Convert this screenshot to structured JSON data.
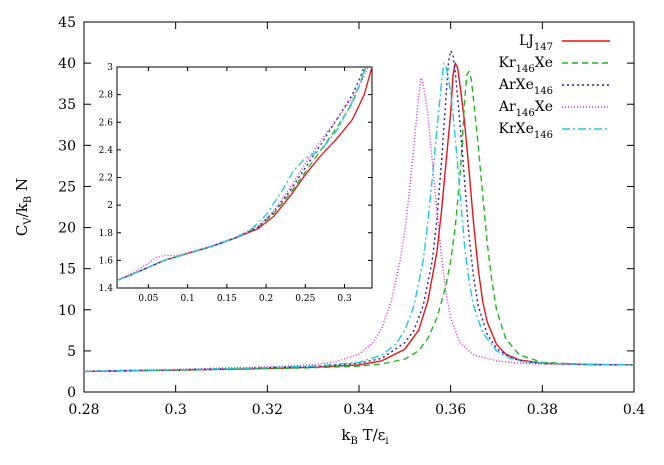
{
  "chart_data": [
    {
      "type": "line",
      "title": "",
      "xlabel": {
        "main": "k",
        "sub": "B",
        "rest": " T/ε",
        "sub2": "i"
      },
      "ylabel": {
        "main": "C",
        "sub": "V",
        "rest": "/k",
        "sub2": "B",
        "rest2": " N"
      },
      "xlim": [
        0.28,
        0.4
      ],
      "ylim": [
        0,
        45
      ],
      "xticks": [
        "0.28",
        "0.3",
        "0.32",
        "0.34",
        "0.36",
        "0.38",
        "0.4"
      ],
      "yticks": [
        "0",
        "5",
        "10",
        "15",
        "20",
        "25",
        "30",
        "35",
        "40",
        "45"
      ],
      "legend_position": "top-right",
      "grid": false,
      "series": [
        {
          "label_main": "LJ",
          "label_sub": "147",
          "label_rest": "",
          "color": "#e8141a",
          "dash": "",
          "points": [
            [
              0.28,
              2.5
            ],
            [
              0.3,
              2.65
            ],
            [
              0.32,
              2.85
            ],
            [
              0.33,
              3.0
            ],
            [
              0.34,
              3.3
            ],
            [
              0.345,
              3.8
            ],
            [
              0.35,
              5.2
            ],
            [
              0.353,
              7.5
            ],
            [
              0.355,
              11.0
            ],
            [
              0.357,
              17.0
            ],
            [
              0.358,
              22.0
            ],
            [
              0.359,
              28.0
            ],
            [
              0.36,
              34.0
            ],
            [
              0.3605,
              38.5
            ],
            [
              0.361,
              40.0
            ],
            [
              0.3615,
              39.5
            ],
            [
              0.362,
              37.5
            ],
            [
              0.363,
              33.0
            ],
            [
              0.364,
              27.0
            ],
            [
              0.365,
              20.5
            ],
            [
              0.366,
              15.0
            ],
            [
              0.367,
              11.0
            ],
            [
              0.368,
              8.5
            ],
            [
              0.37,
              5.8
            ],
            [
              0.372,
              4.6
            ],
            [
              0.375,
              3.9
            ],
            [
              0.38,
              3.5
            ],
            [
              0.39,
              3.35
            ],
            [
              0.4,
              3.3
            ]
          ]
        },
        {
          "label_main": "Kr",
          "label_sub": "146",
          "label_rest": "Xe",
          "color": "#22b522",
          "dash": "6,4",
          "points": [
            [
              0.28,
              2.5
            ],
            [
              0.3,
              2.65
            ],
            [
              0.32,
              2.85
            ],
            [
              0.33,
              2.95
            ],
            [
              0.34,
              3.15
            ],
            [
              0.345,
              3.4
            ],
            [
              0.35,
              4.0
            ],
            [
              0.353,
              5.0
            ],
            [
              0.355,
              6.5
            ],
            [
              0.357,
              9.0
            ],
            [
              0.359,
              13.0
            ],
            [
              0.36,
              16.0
            ],
            [
              0.361,
              20.0
            ],
            [
              0.362,
              26.0
            ],
            [
              0.3625,
              30.0
            ],
            [
              0.363,
              35.0
            ],
            [
              0.3635,
              38.5
            ],
            [
              0.364,
              39.0
            ],
            [
              0.3645,
              38.0
            ],
            [
              0.365,
              35.5
            ],
            [
              0.366,
              30.0
            ],
            [
              0.367,
              24.0
            ],
            [
              0.368,
              18.0
            ],
            [
              0.369,
              13.5
            ],
            [
              0.37,
              10.0
            ],
            [
              0.372,
              6.5
            ],
            [
              0.375,
              4.5
            ],
            [
              0.38,
              3.6
            ],
            [
              0.39,
              3.35
            ],
            [
              0.4,
              3.3
            ]
          ]
        },
        {
          "label_main": "ArXe",
          "label_sub": "146",
          "label_rest": "",
          "color": "#2020b0",
          "dash": "2,3",
          "points": [
            [
              0.28,
              2.5
            ],
            [
              0.3,
              2.7
            ],
            [
              0.32,
              2.95
            ],
            [
              0.33,
              3.1
            ],
            [
              0.34,
              3.5
            ],
            [
              0.345,
              4.1
            ],
            [
              0.35,
              6.0
            ],
            [
              0.352,
              7.5
            ],
            [
              0.354,
              10.5
            ],
            [
              0.356,
              16.0
            ],
            [
              0.357,
              21.0
            ],
            [
              0.358,
              28.0
            ],
            [
              0.359,
              36.0
            ],
            [
              0.3595,
              40.0
            ],
            [
              0.36,
              41.5
            ],
            [
              0.3605,
              41.0
            ],
            [
              0.361,
              39.0
            ],
            [
              0.362,
              33.0
            ],
            [
              0.363,
              26.0
            ],
            [
              0.364,
              19.0
            ],
            [
              0.365,
              14.0
            ],
            [
              0.366,
              10.5
            ],
            [
              0.368,
              7.0
            ],
            [
              0.37,
              5.3
            ],
            [
              0.373,
              4.2
            ],
            [
              0.376,
              3.7
            ],
            [
              0.38,
              3.45
            ],
            [
              0.39,
              3.35
            ],
            [
              0.4,
              3.3
            ]
          ]
        },
        {
          "label_main": "Ar",
          "label_sub": "146",
          "label_rest": "Xe",
          "color": "#e020e0",
          "dash": "1,2",
          "points": [
            [
              0.28,
              2.55
            ],
            [
              0.3,
              2.75
            ],
            [
              0.32,
              3.05
            ],
            [
              0.33,
              3.3
            ],
            [
              0.335,
              3.7
            ],
            [
              0.34,
              4.6
            ],
            [
              0.343,
              6.0
            ],
            [
              0.345,
              7.8
            ],
            [
              0.347,
              11.0
            ],
            [
              0.349,
              16.0
            ],
            [
              0.35,
              19.5
            ],
            [
              0.351,
              24.5
            ],
            [
              0.352,
              30.0
            ],
            [
              0.353,
              36.0
            ],
            [
              0.3535,
              38.2
            ],
            [
              0.354,
              37.5
            ],
            [
              0.355,
              34.0
            ],
            [
              0.356,
              28.0
            ],
            [
              0.357,
              22.0
            ],
            [
              0.358,
              16.5
            ],
            [
              0.359,
              12.0
            ],
            [
              0.36,
              9.0
            ],
            [
              0.362,
              6.0
            ],
            [
              0.365,
              4.5
            ],
            [
              0.37,
              3.8
            ],
            [
              0.375,
              3.5
            ],
            [
              0.38,
              3.4
            ],
            [
              0.39,
              3.35
            ],
            [
              0.4,
              3.3
            ]
          ]
        },
        {
          "label_main": "KrXe",
          "label_sub": "146",
          "label_rest": "",
          "color": "#22c8e0",
          "dash": "8,3,2,3",
          "points": [
            [
              0.28,
              2.5
            ],
            [
              0.3,
              2.7
            ],
            [
              0.32,
              2.95
            ],
            [
              0.33,
              3.15
            ],
            [
              0.34,
              3.6
            ],
            [
              0.345,
              4.5
            ],
            [
              0.348,
              5.8
            ],
            [
              0.35,
              7.5
            ],
            [
              0.352,
              10.5
            ],
            [
              0.354,
              16.0
            ],
            [
              0.355,
              20.5
            ],
            [
              0.356,
              26.0
            ],
            [
              0.357,
              32.0
            ],
            [
              0.358,
              37.5
            ],
            [
              0.3585,
              40.0
            ],
            [
              0.359,
              39.5
            ],
            [
              0.36,
              36.5
            ],
            [
              0.361,
              31.0
            ],
            [
              0.362,
              24.5
            ],
            [
              0.363,
              18.0
            ],
            [
              0.364,
              13.5
            ],
            [
              0.365,
              10.5
            ],
            [
              0.367,
              7.2
            ],
            [
              0.37,
              5.0
            ],
            [
              0.373,
              4.1
            ],
            [
              0.376,
              3.7
            ],
            [
              0.38,
              3.5
            ],
            [
              0.39,
              3.35
            ],
            [
              0.4,
              3.3
            ]
          ]
        }
      ]
    },
    {
      "type": "line",
      "title": "",
      "role": "inset",
      "xlim": [
        0.01,
        0.335
      ],
      "ylim": [
        1.4,
        3.0
      ],
      "xticks": [
        "0.05",
        "0.1",
        "0.15",
        "0.2",
        "0.25",
        "0.3"
      ],
      "yticks": [
        "1.4",
        "1.6",
        "1.8",
        "2",
        "2.2",
        "2.4",
        "2.6",
        "2.8",
        "3"
      ],
      "series": [
        {
          "color": "#e8141a",
          "dash": "",
          "points": [
            [
              0.01,
              1.455
            ],
            [
              0.03,
              1.5
            ],
            [
              0.05,
              1.55
            ],
            [
              0.07,
              1.6
            ],
            [
              0.1,
              1.65
            ],
            [
              0.13,
              1.7
            ],
            [
              0.16,
              1.76
            ],
            [
              0.19,
              1.83
            ],
            [
              0.21,
              1.92
            ],
            [
              0.23,
              2.06
            ],
            [
              0.25,
              2.22
            ],
            [
              0.27,
              2.36
            ],
            [
              0.29,
              2.48
            ],
            [
              0.31,
              2.62
            ],
            [
              0.325,
              2.8
            ],
            [
              0.335,
              3.0
            ]
          ]
        },
        {
          "color": "#22b522",
          "dash": "6,4",
          "points": [
            [
              0.01,
              1.455
            ],
            [
              0.03,
              1.5
            ],
            [
              0.05,
              1.55
            ],
            [
              0.07,
              1.6
            ],
            [
              0.1,
              1.65
            ],
            [
              0.13,
              1.7
            ],
            [
              0.16,
              1.76
            ],
            [
              0.19,
              1.84
            ],
            [
              0.21,
              1.94
            ],
            [
              0.23,
              2.08
            ],
            [
              0.25,
              2.24
            ],
            [
              0.27,
              2.4
            ],
            [
              0.29,
              2.56
            ],
            [
              0.31,
              2.74
            ],
            [
              0.32,
              2.88
            ],
            [
              0.327,
              3.0
            ]
          ]
        },
        {
          "color": "#2020b0",
          "dash": "2,3",
          "points": [
            [
              0.01,
              1.455
            ],
            [
              0.03,
              1.5
            ],
            [
              0.05,
              1.55
            ],
            [
              0.07,
              1.6
            ],
            [
              0.1,
              1.65
            ],
            [
              0.13,
              1.7
            ],
            [
              0.16,
              1.76
            ],
            [
              0.19,
              1.84
            ],
            [
              0.21,
              1.95
            ],
            [
              0.23,
              2.1
            ],
            [
              0.25,
              2.27
            ],
            [
              0.27,
              2.44
            ],
            [
              0.29,
              2.62
            ],
            [
              0.31,
              2.8
            ],
            [
              0.318,
              2.9
            ],
            [
              0.325,
              3.0
            ]
          ]
        },
        {
          "color": "#e020e0",
          "dash": "1,2",
          "points": [
            [
              0.01,
              1.455
            ],
            [
              0.03,
              1.51
            ],
            [
              0.05,
              1.58
            ],
            [
              0.06,
              1.62
            ],
            [
              0.07,
              1.635
            ],
            [
              0.085,
              1.635
            ],
            [
              0.1,
              1.655
            ],
            [
              0.13,
              1.705
            ],
            [
              0.16,
              1.765
            ],
            [
              0.19,
              1.85
            ],
            [
              0.21,
              1.96
            ],
            [
              0.23,
              2.12
            ],
            [
              0.25,
              2.3
            ],
            [
              0.27,
              2.47
            ],
            [
              0.29,
              2.62
            ],
            [
              0.31,
              2.78
            ],
            [
              0.322,
              2.9
            ],
            [
              0.33,
              3.0
            ]
          ]
        },
        {
          "color": "#22c8e0",
          "dash": "8,3,2,3",
          "points": [
            [
              0.01,
              1.455
            ],
            [
              0.03,
              1.5
            ],
            [
              0.05,
              1.55
            ],
            [
              0.07,
              1.6
            ],
            [
              0.1,
              1.65
            ],
            [
              0.13,
              1.7
            ],
            [
              0.16,
              1.76
            ],
            [
              0.18,
              1.82
            ],
            [
              0.2,
              1.93
            ],
            [
              0.22,
              2.1
            ],
            [
              0.235,
              2.25
            ],
            [
              0.25,
              2.34
            ],
            [
              0.27,
              2.4
            ],
            [
              0.29,
              2.54
            ],
            [
              0.31,
              2.75
            ],
            [
              0.32,
              2.88
            ],
            [
              0.326,
              3.0
            ]
          ]
        }
      ]
    }
  ]
}
